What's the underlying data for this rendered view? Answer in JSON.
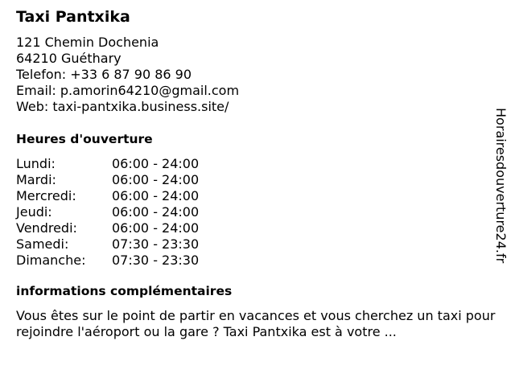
{
  "title": "Taxi Pantxika",
  "address": [
    "121 Chemin Dochenia",
    "64210 Guéthary",
    "Telefon: +33 6 87 90 86 90",
    "Email: p.amorin64210@gmail.com",
    "Web: taxi-pantxika.business.site/"
  ],
  "hours_heading": "Heures d'ouverture",
  "hours": [
    {
      "day": "Lundi:",
      "time": "06:00 - 24:00"
    },
    {
      "day": "Mardi:",
      "time": "06:00 - 24:00"
    },
    {
      "day": "Mercredi:",
      "time": "06:00 - 24:00"
    },
    {
      "day": "Jeudi:",
      "time": "06:00 - 24:00"
    },
    {
      "day": "Vendredi:",
      "time": "06:00 - 24:00"
    },
    {
      "day": "Samedi:",
      "time": "07:30 - 23:30"
    },
    {
      "day": "Dimanche:",
      "time": "07:30 - 23:30"
    }
  ],
  "info_heading": "informations complémentaires",
  "info_text": "Vous êtes sur le point de partir en vacances et vous cherchez un taxi pour rejoindre l'aéroport ou la gare ? Taxi Pantxika est à votre ...",
  "watermark": "Horairesdouverture24.fr"
}
